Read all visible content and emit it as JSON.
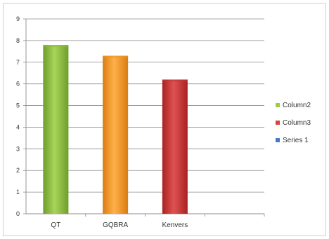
{
  "chart_data": {
    "type": "bar",
    "categories": [
      "QT",
      "GQBRA",
      "Kenvers"
    ],
    "values": [
      7.8,
      7.3,
      6.2
    ],
    "bar_colors": [
      "#8bbd3b",
      "#f29624",
      "#c43434"
    ],
    "ylim": [
      0,
      9
    ],
    "y_ticks": [
      "0",
      "1",
      "2",
      "3",
      "4",
      "5",
      "6",
      "7",
      "8",
      "9"
    ],
    "grid": true,
    "title": "",
    "xlabel": "",
    "ylabel": "",
    "legend_position": "right",
    "legend": [
      {
        "label": "Column2",
        "color": "#9acb4a"
      },
      {
        "label": "Column3",
        "color": "#d9433f"
      },
      {
        "label": "Series 1",
        "color": "#4a78c2"
      }
    ]
  }
}
